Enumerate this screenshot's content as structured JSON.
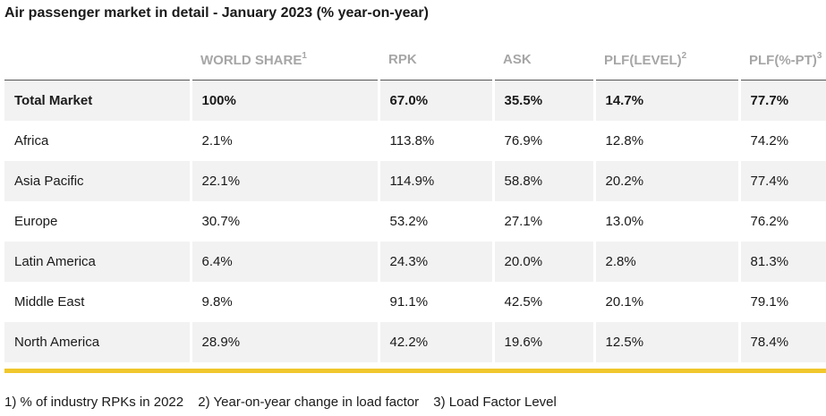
{
  "title": "Air passenger market in detail - January 2023 (% year-on-year)",
  "columns": [
    {
      "label": "",
      "sup": ""
    },
    {
      "label": "WORLD SHARE",
      "sup": "1"
    },
    {
      "label": "RPK",
      "sup": ""
    },
    {
      "label": "ASK",
      "sup": ""
    },
    {
      "label": "PLF(LEVEL)",
      "sup": "2"
    },
    {
      "label": "PLF(%-PT)",
      "sup": "3"
    }
  ],
  "rows": [
    [
      "Total Market",
      "100%",
      "67.0%",
      "35.5%",
      "14.7%",
      "77.7%"
    ],
    [
      "Africa",
      "2.1%",
      "113.8%",
      "76.9%",
      "12.8%",
      "74.2%"
    ],
    [
      "Asia Pacific",
      "22.1%",
      "114.9%",
      "58.8%",
      "20.2%",
      "77.4%"
    ],
    [
      "Europe",
      "30.7%",
      "53.2%",
      "27.1%",
      "13.0%",
      "76.2%"
    ],
    [
      "Latin America",
      "6.4%",
      "24.3%",
      "20.0%",
      "2.8%",
      "81.3%"
    ],
    [
      "Middle East",
      "9.8%",
      "91.1%",
      "42.5%",
      "20.1%",
      "79.1%"
    ],
    [
      "North America",
      "28.9%",
      "42.2%",
      "19.6%",
      "12.5%",
      "78.4%"
    ]
  ],
  "footnotes": [
    "1) % of industry RPKs in 2022",
    "2) Year-on-year change in load factor",
    "3) Load Factor Level"
  ],
  "colors": {
    "accent_rule": "#f0c72c",
    "row_shade": "#f2f2f2",
    "header_text": "#a6a6a6"
  }
}
